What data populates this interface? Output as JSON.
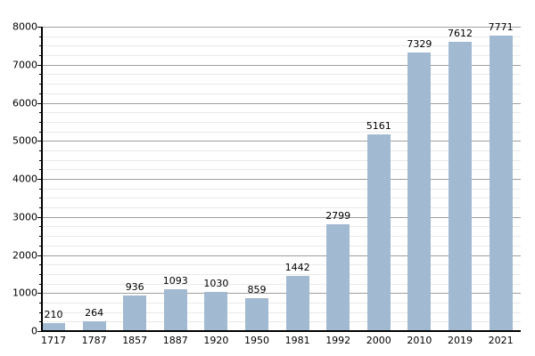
{
  "chart_data": {
    "type": "bar",
    "title": "",
    "xlabel": "",
    "ylabel": "",
    "categories": [
      "1717",
      "1787",
      "1857",
      "1887",
      "1920",
      "1950",
      "1981",
      "1992",
      "2000",
      "2010",
      "2019",
      "2021"
    ],
    "values": [
      210,
      264,
      936,
      1093,
      1030,
      859,
      1442,
      2799,
      5161,
      7329,
      7612,
      7771
    ],
    "value_labels": [
      "210",
      "264",
      "936",
      "1093",
      "1030",
      "859",
      "1442",
      "2799",
      "5161",
      "7329",
      "7612",
      "7771"
    ],
    "ylim": [
      0,
      8000
    ],
    "y_major_step": 1000,
    "y_minor_step": 250,
    "y_tick_labels": [
      "0",
      "1000",
      "2000",
      "3000",
      "4000",
      "5000",
      "6000",
      "7000",
      "8000"
    ],
    "grid": true,
    "legend": "none",
    "bar_value_labels_shown": true
  },
  "colors": {
    "background": "#ffffff",
    "bar_fill": "#a2b9d2",
    "major_gridline": "#9e9e9e",
    "minor_gridline": "#e9e9e9",
    "axis": "#000000",
    "label_text": "#000000"
  }
}
